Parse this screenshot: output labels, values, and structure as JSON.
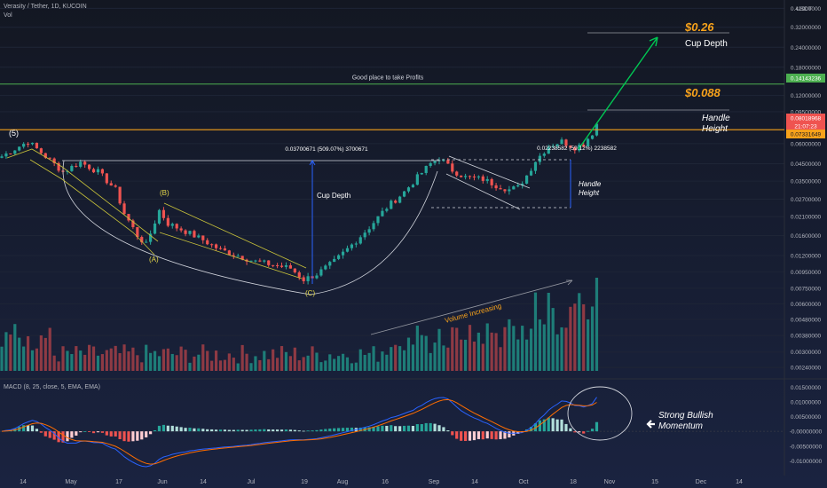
{
  "header": {
    "title": "Verasity / Tether, 1D, KUCOIN",
    "volume_label": "Vol",
    "macd_label": "MACD (8, 25, close, 5, EMA, EMA)",
    "currency": "USDT"
  },
  "colors": {
    "background": "#131722",
    "up": "#26a69a",
    "down": "#ef5350",
    "up_vol": "#1e7d78",
    "down_vol": "#8e3a44",
    "orange": "#f7a21b",
    "target_green": "#00c853",
    "profit_line": "#4caf50",
    "macd_line": "#2962ff",
    "signal_line": "#ff6d00",
    "price_badge": "#ef5350"
  },
  "chart_data": [
    {
      "type": "candlestick",
      "title": "Verasity / Tether, 1D, KUCOIN",
      "x_ticks": [
        "14",
        "May",
        "17",
        "Jun",
        "14",
        "Jul",
        "19",
        "Aug",
        "16",
        "Sep",
        "14",
        "Oct",
        "18",
        "Nov",
        "15",
        "Dec",
        "14"
      ],
      "y_scale": "log",
      "y_unit": "USDT",
      "y_ticks": [
        "0.42000000",
        "0.32000000",
        "0.24000000",
        "0.18000000",
        "0.12000000",
        "0.09500000",
        "0.06000000",
        "0.04500000",
        "0.03500000",
        "0.02700000",
        "0.02100000",
        "0.01600000",
        "0.01200000",
        "0.00950000",
        "0.00750000",
        "0.00600000",
        "0.00480000",
        "0.00380000",
        "0.00300000",
        "0.00240000"
      ],
      "ylim": [
        0.0022,
        0.45
      ],
      "price_badges": [
        {
          "value": "0.14143236",
          "color": "#4caf50"
        },
        {
          "value": "0.08018968",
          "color": "#ef5350"
        },
        {
          "value": "21:07:23",
          "color": "#ef5350"
        },
        {
          "value": "0.07331649",
          "color": "#f7a21b"
        }
      ],
      "horizontal_lines": [
        {
          "label": "Good place to take Profits",
          "value": 0.14143236
        },
        {
          "label": "",
          "value": 0.07331649
        }
      ],
      "targets": [
        {
          "value_label": "$0.26",
          "label": "Cup Depth"
        },
        {
          "value_label": "$0.088",
          "label": "Handle Height"
        }
      ],
      "measure_labels": {
        "cup": "0.03700671 (509.07%) 3700671",
        "handle": "0.02238582 (59.12%) 2238582"
      },
      "annotations": {
        "cup_depth": "Cup Depth",
        "handle_height": "Handle Height",
        "volume_increasing": "Volume Increasing"
      },
      "wave_labels": [
        "(5)",
        "(A)",
        "(B)",
        "(C)"
      ],
      "anchor_closes": [
        [
          0,
          0.05
        ],
        [
          6,
          0.062
        ],
        [
          10,
          0.05
        ],
        [
          14,
          0.04
        ],
        [
          18,
          0.046
        ],
        [
          22,
          0.04
        ],
        [
          26,
          0.031
        ],
        [
          28,
          0.022
        ],
        [
          31,
          0.016
        ],
        [
          33,
          0.014
        ],
        [
          36,
          0.023
        ],
        [
          38,
          0.019
        ],
        [
          42,
          0.017
        ],
        [
          46,
          0.015
        ],
        [
          50,
          0.013
        ],
        [
          54,
          0.012
        ],
        [
          58,
          0.011
        ],
        [
          62,
          0.0105
        ],
        [
          66,
          0.01
        ],
        [
          69,
          0.0085
        ],
        [
          72,
          0.0092
        ],
        [
          76,
          0.011
        ],
        [
          80,
          0.014
        ],
        [
          84,
          0.018
        ],
        [
          88,
          0.024
        ],
        [
          92,
          0.03
        ],
        [
          95,
          0.037
        ],
        [
          98,
          0.045
        ],
        [
          100,
          0.049
        ],
        [
          103,
          0.041
        ],
        [
          106,
          0.037
        ],
        [
          110,
          0.036
        ],
        [
          113,
          0.033
        ],
        [
          116,
          0.031
        ],
        [
          118,
          0.032
        ],
        [
          120,
          0.038
        ],
        [
          122,
          0.047
        ],
        [
          125,
          0.058
        ],
        [
          128,
          0.062
        ],
        [
          131,
          0.057
        ],
        [
          133,
          0.06
        ],
        [
          135,
          0.07
        ],
        [
          136,
          0.08
        ]
      ]
    },
    {
      "type": "bar",
      "title": "Vol",
      "description_series": "daily volume",
      "trend": "increasing into October"
    },
    {
      "type": "line",
      "title": "MACD (8, 25, close, 5, EMA, EMA)",
      "y_ticks": [
        "0.01500000",
        "0.01000000",
        "0.00500000",
        "-0.00000000",
        "-0.00500000",
        "-0.01000000"
      ],
      "ylim": [
        -0.012,
        0.016
      ],
      "series": [
        {
          "name": "MACD"
        },
        {
          "name": "Signal"
        }
      ],
      "annotation": "Strong Bullish Momentum"
    }
  ]
}
